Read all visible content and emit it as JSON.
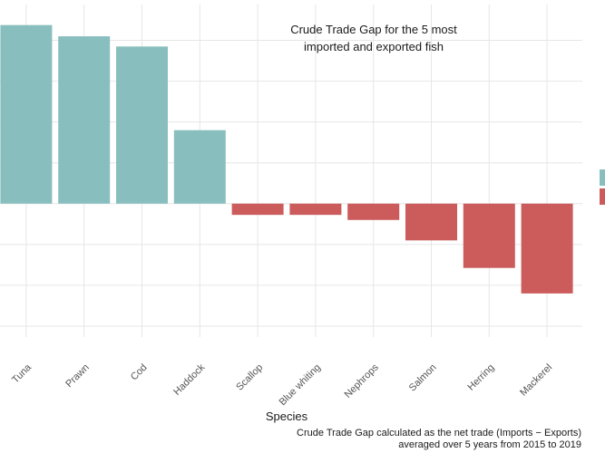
{
  "chart_data": {
    "type": "bar",
    "title_lines": [
      "Crude Trade Gap for the 5 most",
      "imported and exported fish"
    ],
    "xlabel": "Species",
    "ylabel": "",
    "categories": [
      "Tuna",
      "Prawn",
      "Cod",
      "Haddock",
      "Scallop",
      "Blue whiting",
      "Nephrops",
      "Salmon",
      "Herring",
      "Mackerel"
    ],
    "values": [
      175,
      164,
      154,
      72,
      -11,
      -11,
      -16,
      -36,
      -63,
      -88
    ],
    "ylim": [
      -160,
      200
    ],
    "grid": true,
    "legend": "right (cropped)",
    "caption_lines": [
      "Crude Trade Gap calculated as the net trade (Imports − Exports)",
      "averaged over 5 years from 2015 to 2019"
    ],
    "colors": {
      "positive": "#88bfbe",
      "negative": "#cc5c5c",
      "grid": "#e6e6e6"
    }
  }
}
